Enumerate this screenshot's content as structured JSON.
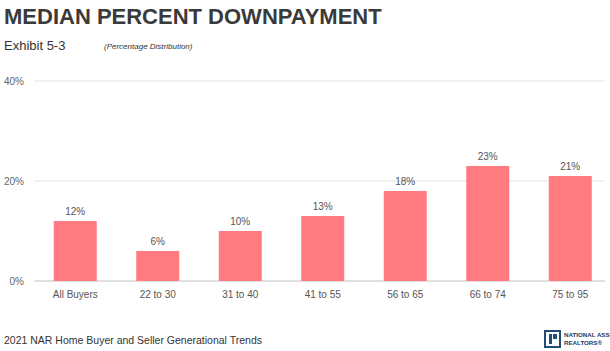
{
  "chart_data": {
    "type": "bar",
    "title": "MEDIAN PERCENT DOWNPAYMENT",
    "subtitle": "Exhibit 5-3",
    "note": "(Percentage Distribution)",
    "source": "2021 NAR Home Buyer and Seller Generational Trends",
    "logo": [
      "NATIONAL ASSOCIATION OF",
      "REALTORS®"
    ],
    "categories": [
      "All Buyers",
      "22 to 30",
      "31 to 40",
      "41 to 55",
      "56 to 65",
      "66 to 74",
      "75 to 95"
    ],
    "values": [
      12,
      6,
      10,
      13,
      18,
      23,
      21
    ],
    "value_labels": [
      "12%",
      "6%",
      "10%",
      "13%",
      "18%",
      "23%",
      "21%"
    ],
    "color": "#ff7b7f",
    "ylim": [
      0,
      40
    ],
    "yticks": [
      {
        "value": 0,
        "label": "0%"
      },
      {
        "value": 20,
        "label": "20%"
      },
      {
        "value": 40,
        "label": "40%"
      }
    ],
    "grid": true,
    "data_labels": true
  }
}
